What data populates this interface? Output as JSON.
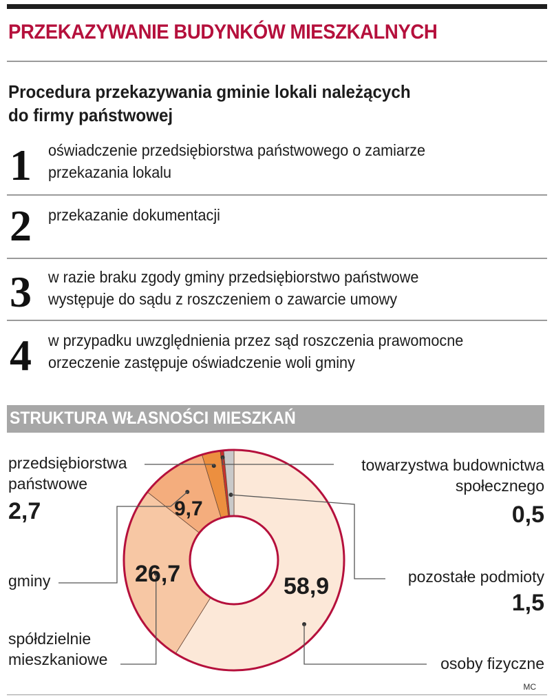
{
  "header": {
    "title": "PRZEKAZYWANIE BUDYNKÓW MIESZKALNYCH",
    "subtitle_line1": "Procedura przekazywania gminie lokali należących",
    "subtitle_line2": "do firmy państwowej"
  },
  "steps": [
    {
      "number": "1",
      "line1": "oświadczenie przedsiębiorstwa państwowego o zamiarze",
      "line2": "przekazania lokalu"
    },
    {
      "number": "2",
      "line1": "przekazanie dokumentacji",
      "line2": ""
    },
    {
      "number": "3",
      "line1": "w razie braku zgody gminy przedsiębiorstwo państwowe",
      "line2": "występuje do sądu z roszczeniem o zawarcie umowy"
    },
    {
      "number": "4",
      "line1": "w  przypadku uwzględnienia przez sąd roszczenia prawomocne",
      "line2": "orzeczenie zastępuje oświadczenie woli gminy"
    }
  ],
  "chart_section": {
    "title": "STRUKTURA WŁASNOŚCI MIESZKAŃ"
  },
  "chart_data": {
    "type": "pie",
    "title": "STRUKTURA WŁASNOŚCI MIESZKAŃ",
    "donut": true,
    "slices": [
      {
        "label_line1": "osoby fizyczne",
        "label_line2": "",
        "value": 58.9,
        "value_text": "58,9",
        "color": "#fce8d8"
      },
      {
        "label_line1": "spółdzielnie",
        "label_line2": "mieszkaniowe",
        "value": 26.7,
        "value_text": "26,7",
        "color": "#f7c7a4"
      },
      {
        "label_line1": "gminy",
        "label_line2": "",
        "value": 9.7,
        "value_text": "9,7",
        "color": "#f4ad7d"
      },
      {
        "label_line1": "przedsiębiorstwa",
        "label_line2": "państwowe",
        "value": 2.7,
        "value_text": "2,7",
        "color": "#ec8f3f"
      },
      {
        "label_line1": "towarzystwa budownictwa",
        "label_line2": "społecznego",
        "value": 0.5,
        "value_text": "0,5",
        "color": "#c8322e"
      },
      {
        "label_line1": "pozostałe podmioty",
        "label_line2": "",
        "value": 1.5,
        "value_text": "1,5",
        "color": "#c9c9c9"
      }
    ],
    "colors": {
      "ring_outline": "#b5103c",
      "leader_line": "#555555"
    }
  },
  "credit": "MC"
}
